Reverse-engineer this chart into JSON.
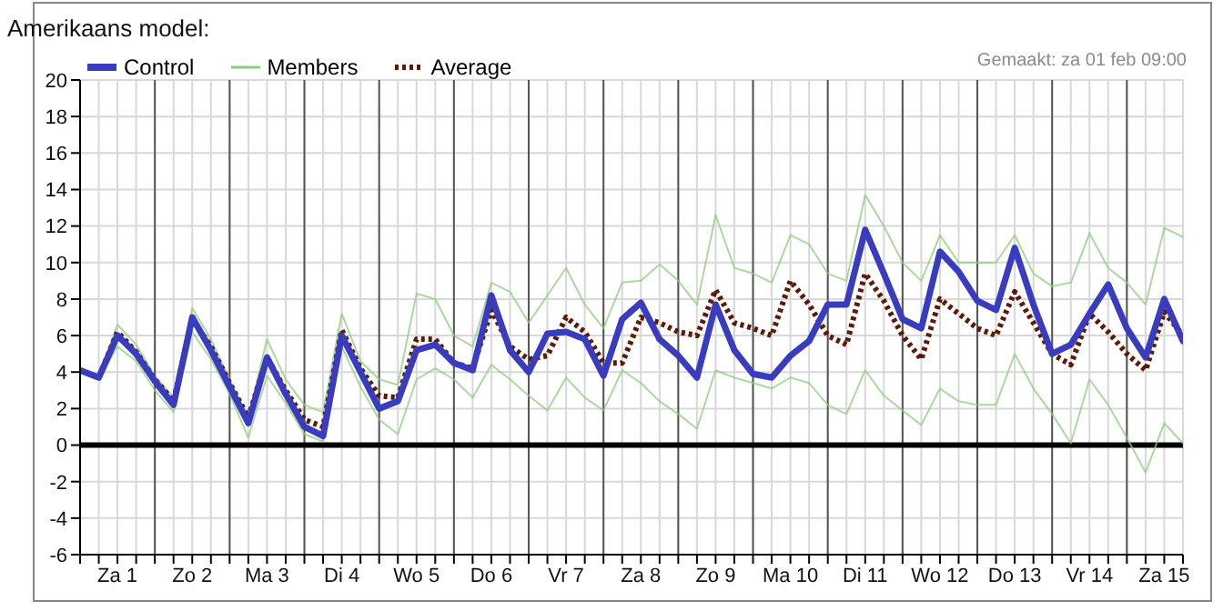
{
  "chart_data": {
    "type": "line",
    "title": "Amerikaans model:",
    "annotations": [
      "Gemaakt: za 01 feb 09:00"
    ],
    "categories": [
      null,
      null,
      "Za 1",
      null,
      null,
      null,
      "Zo 2",
      null,
      null,
      null,
      "Ma 3",
      null,
      null,
      null,
      "Di 4",
      null,
      null,
      null,
      "Wo 5",
      null,
      null,
      null,
      "Do 6",
      null,
      null,
      null,
      "Vr 7",
      null,
      null,
      null,
      "Za 8",
      null,
      null,
      null,
      "Zo 9",
      null,
      null,
      null,
      "Ma 10",
      null,
      null,
      null,
      "Di 11",
      null,
      null,
      null,
      "Wo 12",
      null,
      null,
      null,
      "Do 13",
      null,
      null,
      null,
      "Vr 14",
      null,
      null,
      null,
      "Za 15",
      null
    ],
    "ylim": [
      -6,
      20
    ],
    "yticks": [
      -6,
      -4,
      -2,
      0,
      2,
      4,
      6,
      8,
      10,
      12,
      14,
      16,
      18,
      20
    ],
    "grid": true,
    "legend": "top left",
    "ref_lines": [
      {
        "axis": "y",
        "value": 0,
        "color": "#000000"
      }
    ],
    "series": [
      {
        "name": "Members",
        "color": "#8fcc7f",
        "values": [
          4.1,
          3.8,
          6.6,
          5.5,
          3.8,
          2.6,
          7.5,
          5.8,
          3.6,
          1.5,
          5.8,
          3.6,
          2.2,
          1.8,
          7.2,
          4.6,
          3.6,
          3.3,
          8.3,
          8.0,
          6.0,
          5.4,
          8.9,
          8.4,
          6.7,
          8.2,
          9.7,
          7.7,
          6.4,
          8.9,
          9.0,
          9.9,
          9.0,
          7.7,
          12.6,
          9.7,
          9.4,
          8.9,
          11.5,
          11.0,
          9.4,
          9.0,
          13.7,
          12.0,
          10.0,
          9.0,
          11.5,
          10.0,
          10.0,
          10.0,
          11.5,
          9.4,
          8.7,
          8.9,
          11.6,
          9.7,
          8.9,
          7.7,
          11.9,
          11.4
        ]
      },
      {
        "color": "#8fcc7f",
        "values": [
          4.0,
          3.6,
          5.4,
          4.6,
          3.0,
          1.8,
          6.2,
          4.7,
          2.8,
          0.4,
          3.8,
          2.3,
          0.6,
          0.2,
          5.4,
          3.2,
          1.4,
          0.6,
          3.6,
          4.2,
          3.6,
          2.6,
          4.4,
          3.6,
          2.7,
          1.9,
          3.7,
          2.6,
          1.9,
          4.1,
          3.4,
          2.4,
          1.7,
          0.9,
          4.1,
          3.7,
          3.4,
          3.1,
          3.7,
          3.4,
          2.2,
          1.7,
          4.1,
          2.7,
          1.9,
          1.1,
          3.1,
          2.4,
          2.2,
          2.2,
          5.0,
          3.1,
          1.7,
          0.1,
          3.6,
          2.2,
          0.4,
          -1.5,
          1.2,
          0.1
        ]
      },
      {
        "name": "Average",
        "color": "#5c1a08",
        "line_style": "dotted",
        "values": [
          4.1,
          3.7,
          6.2,
          5.1,
          3.6,
          2.4,
          6.9,
          5.4,
          3.4,
          1.5,
          4.8,
          3.0,
          1.4,
          1.0,
          6.3,
          4.2,
          2.7,
          2.6,
          5.8,
          5.8,
          4.5,
          4.2,
          7.4,
          5.4,
          4.7,
          4.9,
          7.0,
          6.2,
          4.5,
          4.5,
          7.0,
          6.7,
          6.2,
          6.0,
          8.5,
          6.7,
          6.4,
          6.0,
          9.0,
          7.7,
          6.0,
          5.5,
          9.4,
          7.9,
          6.0,
          4.7,
          8.0,
          7.2,
          6.4,
          6.0,
          8.4,
          6.7,
          5.0,
          4.4,
          7.2,
          6.2,
          5.0,
          4.1,
          7.3,
          6.0
        ]
      },
      {
        "name": "Control",
        "color": "#3a3cbf",
        "values": [
          4.1,
          3.7,
          6.0,
          5.0,
          3.5,
          2.2,
          7.0,
          5.2,
          3.2,
          1.2,
          4.8,
          2.8,
          1.0,
          0.5,
          6.0,
          4.0,
          2.0,
          2.4,
          5.2,
          5.5,
          4.5,
          4.1,
          8.2,
          5.2,
          4.0,
          6.1,
          6.2,
          5.8,
          3.8,
          6.9,
          7.8,
          5.8,
          4.9,
          3.7,
          7.7,
          5.2,
          3.9,
          3.7,
          4.9,
          5.7,
          7.7,
          7.7,
          11.8,
          9.4,
          6.9,
          6.4,
          10.6,
          9.5,
          7.9,
          7.4,
          10.8,
          7.7,
          5.0,
          5.5,
          7.2,
          8.8,
          6.4,
          4.8,
          8.0,
          5.7
        ]
      }
    ]
  }
}
